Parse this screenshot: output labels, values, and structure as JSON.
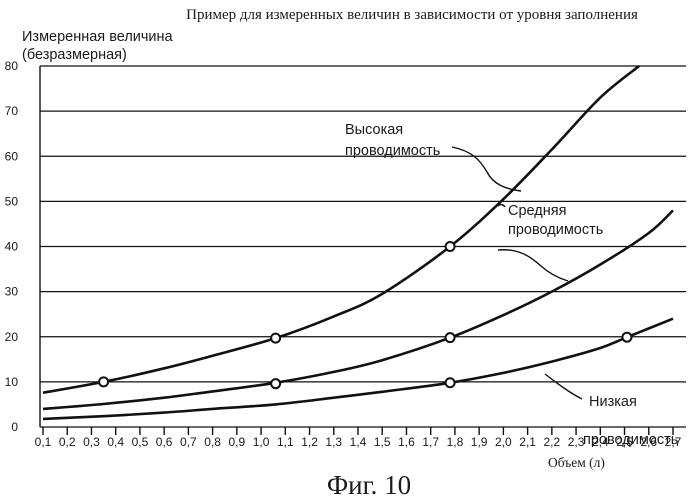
{
  "chart_data": {
    "type": "line",
    "title": "Пример для измеренных величин в зависимости от уровня заполнения",
    "ylabel_line1": "Измеренная величина",
    "ylabel_line2": "(безразмерная)",
    "xlabel": "Объем (л)",
    "caption": "Фиг. 10",
    "xlim": [
      0.1,
      2.7
    ],
    "ylim": [
      0,
      80
    ],
    "x_ticks": [
      "0,1",
      "0,2",
      "0,3",
      "0,4",
      "0,5",
      "0,6",
      "0,7",
      "0,8",
      "0,9",
      "1,0",
      "1,1",
      "1,2",
      "1,3",
      "1,4",
      "1,5",
      "1,6",
      "1,7",
      "1,8",
      "1,9",
      "2,0",
      "2,1",
      "2,2",
      "2,3",
      "2,4",
      "2,5",
      "2,6",
      "2,7"
    ],
    "y_ticks": [
      "0",
      "10",
      "20",
      "30",
      "40",
      "50",
      "60",
      "70",
      "80"
    ],
    "grid": "horizontal",
    "series": [
      {
        "name": "Высокая проводимость",
        "label_line1": "Высокая",
        "label_line2": "проводимость",
        "x": [
          0.1,
          0.35,
          0.6,
          0.8,
          1.06,
          1.3,
          1.5,
          1.78,
          2.0,
          2.2,
          2.4,
          2.56
        ],
        "y": [
          7.6,
          10,
          13,
          15.8,
          19.7,
          24.5,
          29.5,
          40,
          50.5,
          61.5,
          73,
          80
        ]
      },
      {
        "name": "Средняя проводимость",
        "label_line1": "Средняя",
        "label_line2": "проводимость",
        "x": [
          0.1,
          0.35,
          0.6,
          0.8,
          1.06,
          1.3,
          1.5,
          1.78,
          2.0,
          2.2,
          2.4,
          2.6,
          2.7
        ],
        "y": [
          4,
          5.1,
          6.5,
          7.9,
          9.8,
          12.2,
          14.8,
          19.8,
          24.8,
          30,
          36,
          43,
          48
        ]
      },
      {
        "name": "Низкая проводимость",
        "label_line1": "Низкая",
        "label_line2": "проводимость",
        "x": [
          0.1,
          0.35,
          0.6,
          0.8,
          1.06,
          1.3,
          1.5,
          1.78,
          2.0,
          2.2,
          2.4,
          2.51,
          2.7
        ],
        "y": [
          1.8,
          2.4,
          3.2,
          4,
          5,
          6.5,
          7.8,
          9.8,
          12,
          14.5,
          17.5,
          19.9,
          24
        ]
      }
    ],
    "markers": [
      {
        "x": 0.35,
        "y": 10
      },
      {
        "x": 1.06,
        "y": 9.6
      },
      {
        "x": 1.06,
        "y": 19.7
      },
      {
        "x": 1.78,
        "y": 9.8
      },
      {
        "x": 1.78,
        "y": 19.8
      },
      {
        "x": 1.78,
        "y": 40
      },
      {
        "x": 2.51,
        "y": 19.9
      }
    ]
  }
}
